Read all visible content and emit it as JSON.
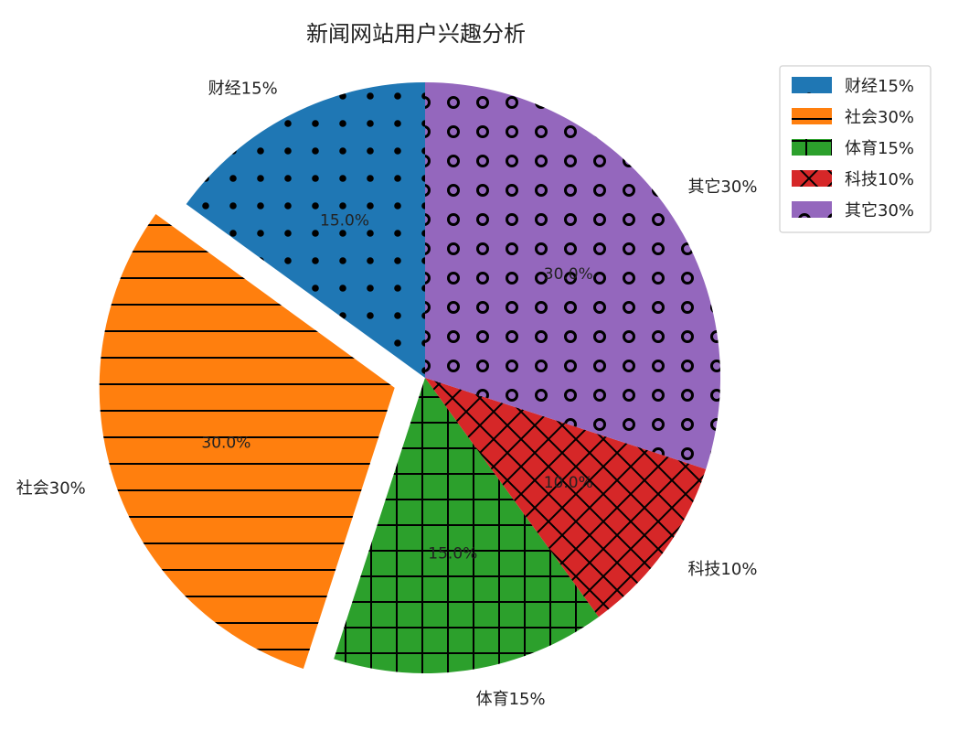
{
  "chart_data": {
    "type": "pie",
    "title": "新闻网站用户兴趣分析",
    "slices": [
      {
        "label": "财经15%",
        "value": 15,
        "pct_label": "15.0%",
        "color": "#1f77b4",
        "hatch": "dots",
        "explode": false
      },
      {
        "label": "社会30%",
        "value": 30,
        "pct_label": "30.0%",
        "color": "#ff7f0e",
        "hatch": "horizontal",
        "explode": true
      },
      {
        "label": "体育15%",
        "value": 15,
        "pct_label": "15.0%",
        "color": "#2ca02c",
        "hatch": "grid",
        "explode": false
      },
      {
        "label": "科技10%",
        "value": 10,
        "pct_label": "10.0%",
        "color": "#d62728",
        "hatch": "crosshatch",
        "explode": false
      },
      {
        "label": "其它30%",
        "value": 30,
        "pct_label": "30.0%",
        "color": "#9467bd",
        "hatch": "circles",
        "explode": false
      }
    ],
    "start_angle_deg": 90,
    "direction": "counterclockwise",
    "legend_position": "top-right"
  }
}
